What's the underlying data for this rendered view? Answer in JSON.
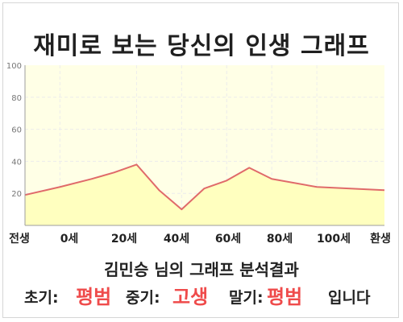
{
  "page": {
    "title": "재미로 보는 당신의 인생 그래프",
    "result_label": "김민승 님의 그래프 분석결과",
    "summary": {
      "early_label": "초기:",
      "early_value": "평범",
      "middle_label": "중기:",
      "middle_value": "고생",
      "late_label": "말기:",
      "late_value": "평범",
      "ending": "입니다"
    }
  },
  "chart_data": {
    "type": "area",
    "x": [
      "전생",
      "0세",
      "20세",
      "40세",
      "60세",
      "80세",
      "100세",
      "환생"
    ],
    "y_ticks": [
      "100",
      "80",
      "60",
      "40",
      "20"
    ],
    "ylim": [
      0,
      100
    ],
    "grid": true,
    "colors": {
      "background": "#ffffe6",
      "area": "#ffffbf",
      "line": "#e06a6a",
      "grid": "#ececec",
      "axis": "#9e9e9e"
    },
    "series": [
      {
        "points": [
          [
            -29.5,
            19
          ],
          [
            -14,
            24
          ],
          [
            0,
            29
          ],
          [
            10,
            33
          ],
          [
            20,
            38
          ],
          [
            30,
            22
          ],
          [
            40,
            10
          ],
          [
            50,
            23
          ],
          [
            60,
            28
          ],
          [
            70,
            36
          ],
          [
            80,
            29
          ],
          [
            100,
            24
          ],
          [
            130,
            22
          ]
        ]
      }
    ]
  }
}
